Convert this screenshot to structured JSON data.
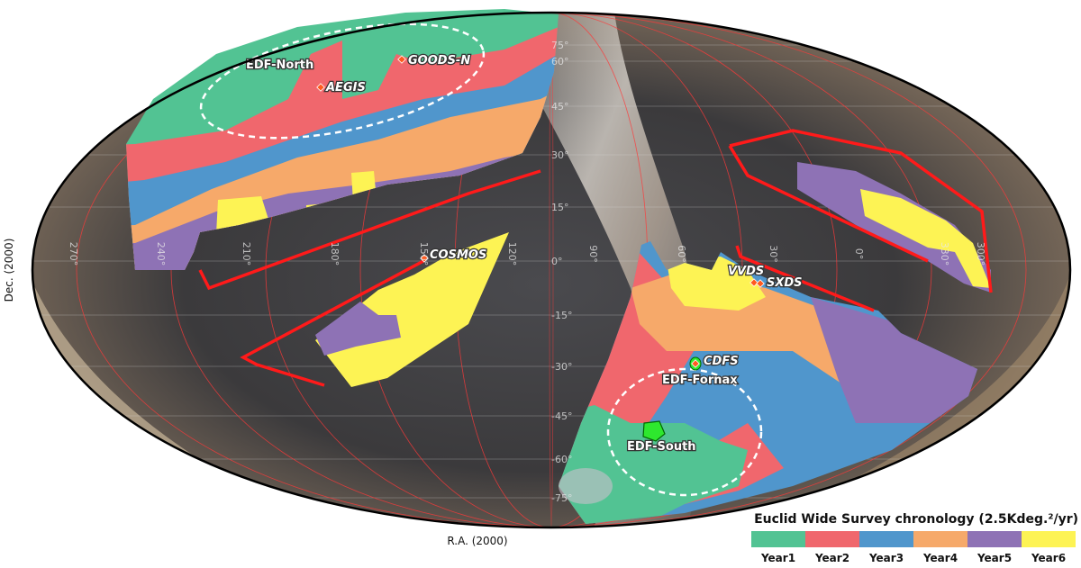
{
  "chart_data": {
    "type": "sky-map",
    "projection": "Mollweide",
    "xlabel": "R.A. (2000)",
    "ylabel": "Dec. (2000)",
    "ra_ticks": [
      "270°",
      "240°",
      "210°",
      "180°",
      "150°",
      "120°",
      "90°",
      "60°",
      "30°",
      "0°",
      "330°",
      "300°"
    ],
    "dec_ticks": [
      "75°",
      "60°",
      "45°",
      "30°",
      "15°",
      "0°",
      "-15°",
      "-30°",
      "-45°",
      "-60°",
      "-75°"
    ],
    "fields": [
      "EDF-North",
      "GOODS-N",
      "AEGIS",
      "COSMOS",
      "VVDS",
      "SXDS",
      "CDFS",
      "EDF-Fornax",
      "EDF-South"
    ],
    "legend": {
      "title": "Euclid Wide Survey chronology (2.5Kdeg.²/yr)",
      "placement": "bottom-right",
      "entries": [
        {
          "label": "Year1",
          "color": "#52c393"
        },
        {
          "label": "Year2",
          "color": "#f0676d"
        },
        {
          "label": "Year3",
          "color": "#5096cc"
        },
        {
          "label": "Year4",
          "color": "#f6a96a"
        },
        {
          "label": "Year5",
          "color": "#8e72b5"
        },
        {
          "label": "Year6",
          "color": "#fdf354"
        }
      ]
    },
    "excluded_boundary_color": "#ff1a1a"
  }
}
